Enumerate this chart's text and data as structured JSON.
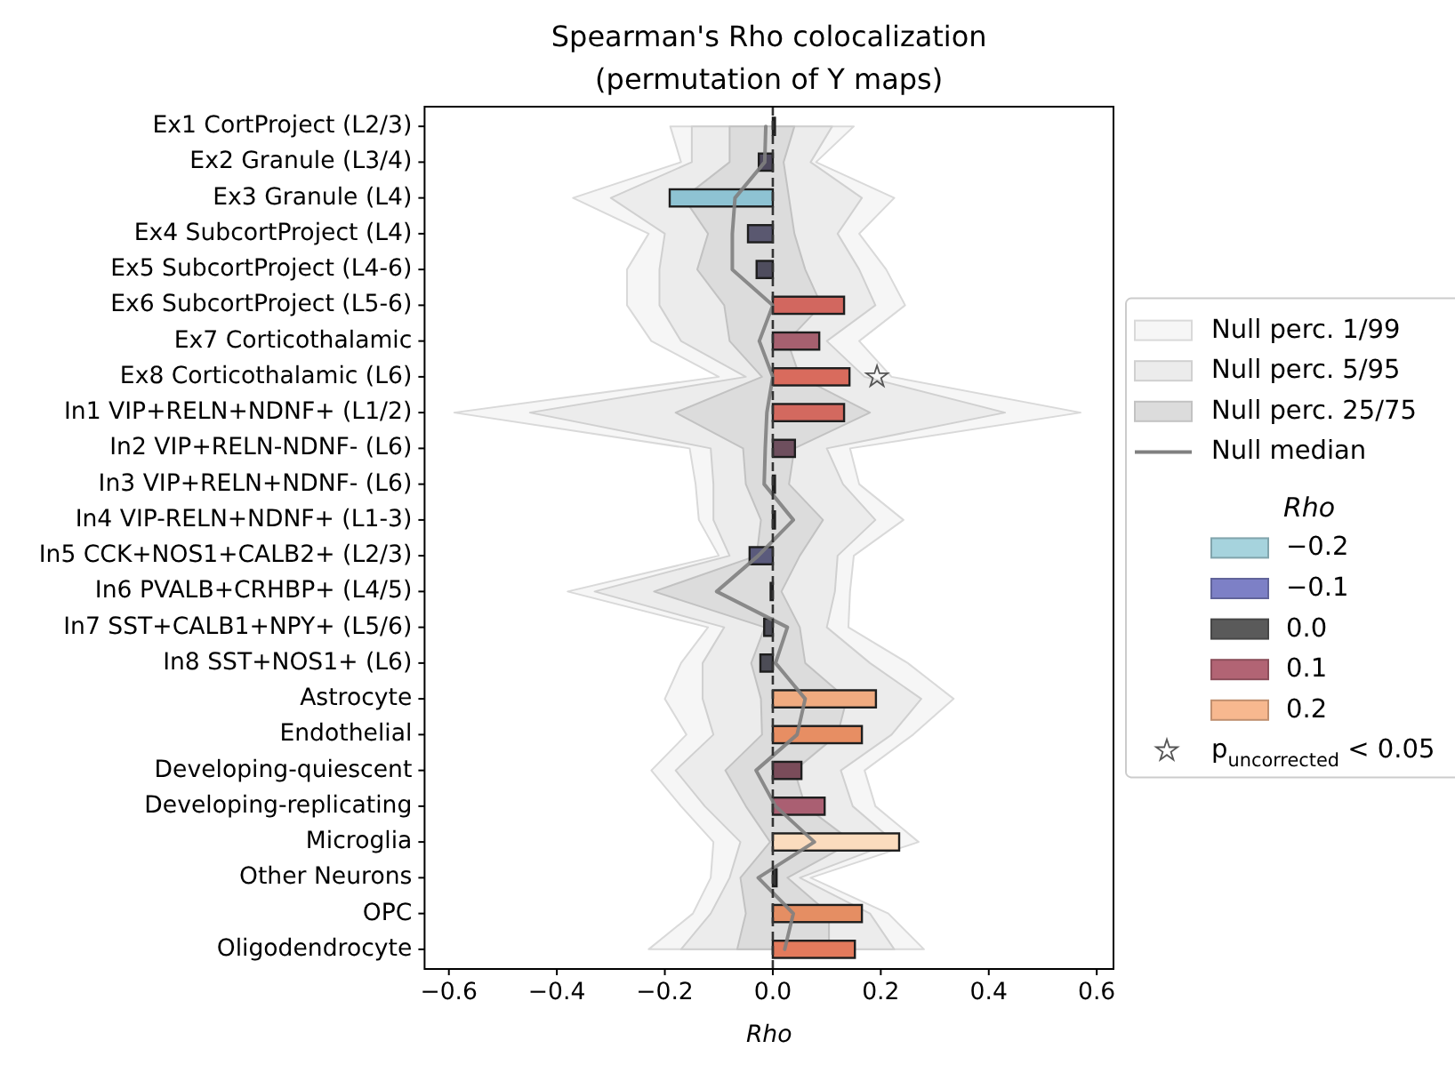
{
  "chart_data": {
    "type": "bar",
    "orientation": "horizontal",
    "title": "Spearman's Rho colocalization",
    "subtitle": "(permutation of Y maps)",
    "xlabel": "Rho",
    "categories": [
      "Ex1 CortProject (L2/3)",
      "Ex2 Granule (L3/4)",
      "Ex3 Granule (L4)",
      "Ex4 SubcortProject (L4)",
      "Ex5 SubcortProject (L4-6)",
      "Ex6 SubcortProject (L5-6)",
      "Ex7 Corticothalamic",
      "Ex8 Corticothalamic (L6)",
      "In1 VIP+RELN+NDNF+ (L1/2)",
      "In2 VIP+RELN-NDNF- (L6)",
      "In3 VIP+RELN+NDNF- (L6)",
      "In4 VIP-RELN+NDNF+ (L1-3)",
      "In5 CCK+NOS1+CALB2+ (L2/3)",
      "In6 PVALB+CRHBP+ (L4/5)",
      "In7 SST+CALB1+NPY+ (L5/6)",
      "In8 SST+NOS1+ (L6)",
      "Astrocyte",
      "Endothelial",
      "Developing-quiescent",
      "Developing-replicating",
      "Microglia",
      "Other Neurons",
      "OPC",
      "Oligodendrocyte"
    ],
    "xlim": [
      -0.645,
      0.631
    ],
    "xticks": [
      {
        "value": -0.6,
        "label": "−0.6"
      },
      {
        "value": -0.4,
        "label": "−0.4"
      },
      {
        "value": -0.2,
        "label": "−0.2"
      },
      {
        "value": 0,
        "label": "0.0"
      },
      0.2,
      0.4,
      0.6
    ],
    "ref_lines": [
      {
        "axis": "x",
        "value": 0,
        "color": "#333333",
        "line_style": "dashed"
      }
    ],
    "legend": "right",
    "legend_title": "Rho",
    "series": [
      {
        "name": "Null perc. 1/99",
        "type": "area",
        "color": "#f6f6f6",
        "values": [
          null,
          null,
          null,
          null,
          null,
          null,
          null,
          null,
          null,
          null,
          null,
          null,
          null,
          null,
          null,
          null,
          null,
          null,
          null,
          null,
          null,
          null,
          null,
          null
        ],
        "lower": [
          -0.19,
          -0.17,
          -0.37,
          -0.23,
          -0.27,
          -0.27,
          -0.225,
          -0.1,
          -0.59,
          -0.154,
          -0.143,
          -0.137,
          -0.1,
          -0.38,
          -0.12,
          -0.17,
          -0.2,
          -0.16,
          -0.225,
          -0.17,
          -0.11,
          -0.115,
          -0.148,
          -0.23
        ],
        "upper": [
          0.15,
          0.08,
          0.225,
          0.16,
          0.21,
          0.245,
          0.16,
          0.22,
          0.57,
          0.143,
          0.16,
          0.242,
          0.15,
          0.143,
          0.14,
          0.25,
          0.335,
          0.26,
          0.17,
          0.19,
          0.27,
          0.07,
          0.214,
          0.28
        ]
      },
      {
        "name": "Null perc. 5/95",
        "type": "area",
        "color": "#ececec",
        "values": [
          null,
          null,
          null,
          null,
          null,
          null,
          null,
          null,
          null,
          null,
          null,
          null,
          null,
          null,
          null,
          null,
          null,
          null,
          null,
          null,
          null,
          null,
          null,
          null
        ],
        "lower": [
          -0.15,
          -0.15,
          -0.3,
          -0.2,
          -0.21,
          -0.21,
          -0.17,
          -0.05,
          -0.45,
          -0.115,
          -0.11,
          -0.11,
          -0.08,
          -0.33,
          -0.09,
          -0.13,
          -0.13,
          -0.11,
          -0.18,
          -0.126,
          -0.06,
          -0.08,
          -0.115,
          -0.17
        ],
        "upper": [
          0.11,
          0.07,
          0.165,
          0.12,
          0.16,
          0.19,
          0.1,
          0.17,
          0.43,
          0.1,
          0.13,
          0.19,
          0.12,
          0.115,
          0.1,
          0.18,
          0.275,
          0.22,
          0.126,
          0.148,
          0.225,
          0.05,
          0.18,
          0.225
        ]
      },
      {
        "name": "Null perc. 25/75",
        "type": "area",
        "color": "#dcdcdc",
        "values": [
          null,
          null,
          null,
          null,
          null,
          null,
          null,
          null,
          null,
          null,
          null,
          null,
          null,
          null,
          null,
          null,
          null,
          null,
          null,
          null,
          null,
          null,
          null,
          null
        ],
        "lower": [
          -0.08,
          -0.08,
          -0.165,
          -0.12,
          -0.14,
          -0.09,
          -0.08,
          -0.02,
          -0.18,
          -0.055,
          -0.05,
          -0.022,
          -0.03,
          -0.22,
          -0.015,
          -0.04,
          -0.022,
          -0.02,
          -0.088,
          -0.05,
          -0.005,
          -0.06,
          -0.05,
          -0.066
        ],
        "upper": [
          0.04,
          0.02,
          0.03,
          0.04,
          0.06,
          0.09,
          0.027,
          0.05,
          0.18,
          0.04,
          0.03,
          0.093,
          0.05,
          0.016,
          0.05,
          0.06,
          0.137,
          0.12,
          0.04,
          0.06,
          0.148,
          0.027,
          0.104,
          0.104
        ]
      },
      {
        "name": "Null median",
        "type": "line",
        "color": "#808080",
        "values": [
          -0.013,
          -0.015,
          -0.07,
          -0.075,
          -0.075,
          0.0,
          -0.025,
          0.0,
          -0.011,
          -0.014,
          -0.016,
          0.038,
          -0.027,
          -0.104,
          0.027,
          0.005,
          0.06,
          0.045,
          -0.031,
          0.005,
          0.077,
          -0.027,
          0.038,
          0.022
        ]
      },
      {
        "values": [
          0.004,
          -0.026,
          -0.191,
          -0.046,
          -0.03,
          0.132,
          0.086,
          0.142,
          0.132,
          0.041,
          0.004,
          0.004,
          -0.043,
          -0.004,
          -0.016,
          -0.023,
          0.191,
          0.165,
          0.053,
          0.096,
          0.234,
          0.007,
          0.165,
          0.152
        ],
        "colors": [
          "#4a4a4a",
          "#4f4a5e",
          "#8ec3d3",
          "#5a5870",
          "#4f4d5e",
          "#d2675f",
          "#a6606f",
          "#d96b5d",
          "#d3695f",
          "#6e4f5e",
          "#3a3a3a",
          "#3a3a3a",
          "#5a5a7c",
          "#3c3c46",
          "#4c4c56",
          "#4c4c56",
          "#f0ab80",
          "#e78e63",
          "#7a4c5a",
          "#aa5f72",
          "#fbdcbe",
          "#3a3a3a",
          "#e58e63",
          "#e37a5c"
        ]
      },
      {
        "name": "−0.2",
        "color": "#a6d3dd",
        "values": [
          null,
          null,
          null,
          null,
          null,
          null,
          null,
          null,
          null,
          null,
          null,
          null,
          null,
          null,
          null,
          null,
          null,
          null,
          null,
          null,
          null,
          null,
          null,
          null
        ]
      },
      {
        "name": "−0.1",
        "color": "#7d80c6",
        "values": [
          null,
          null,
          null,
          null,
          null,
          null,
          null,
          null,
          null,
          null,
          null,
          null,
          null,
          null,
          null,
          null,
          null,
          null,
          null,
          null,
          null,
          null,
          null,
          null
        ]
      },
      {
        "name": "0.0",
        "color": "#5a5a5a",
        "values": [
          null,
          null,
          null,
          null,
          null,
          null,
          null,
          null,
          null,
          null,
          null,
          null,
          null,
          null,
          null,
          null,
          null,
          null,
          null,
          null,
          null,
          null,
          null,
          null
        ]
      },
      {
        "name": "0.1",
        "color": "#b26474",
        "values": [
          null,
          null,
          null,
          null,
          null,
          null,
          null,
          null,
          null,
          null,
          null,
          null,
          null,
          null,
          null,
          null,
          null,
          null,
          null,
          null,
          null,
          null,
          null,
          null
        ]
      },
      {
        "name": "0.2",
        "color": "#f7b88f",
        "values": [
          null,
          null,
          null,
          null,
          null,
          null,
          null,
          null,
          null,
          null,
          null,
          null,
          null,
          null,
          null,
          null,
          null,
          null,
          null,
          null,
          null,
          null,
          null,
          null
        ]
      },
      {
        "name": "p$_{uncorrected}$ < 0.05",
        "type": "scatter",
        "marker": "star",
        "color": "#555555",
        "values": [
          null,
          null,
          null,
          null,
          null,
          null,
          null,
          0.193,
          null,
          null,
          null,
          null,
          null,
          null,
          null,
          null,
          null,
          null,
          null,
          null,
          null,
          null,
          null,
          null
        ]
      }
    ]
  }
}
